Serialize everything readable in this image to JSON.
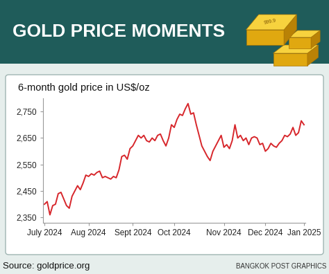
{
  "chart_data": {
    "type": "line",
    "title": "GOLD PRICE MOMENTS",
    "subtitle": "6-month gold price in US$/oz",
    "source": "Source: goldprice.org",
    "credit": "BANGKOK POST GRAPHICS",
    "annotations": [
      "999.9"
    ],
    "categories": [
      "July 2024",
      null,
      null,
      null,
      null,
      null,
      null,
      null,
      null,
      null,
      null,
      null,
      null,
      null,
      null,
      null,
      "Aug 2024",
      null,
      null,
      null,
      null,
      null,
      null,
      null,
      null,
      null,
      null,
      null,
      null,
      null,
      null,
      null,
      "Sept 2024",
      null,
      null,
      null,
      null,
      null,
      null,
      null,
      null,
      null,
      null,
      null,
      null,
      null,
      null,
      "Oct 2024",
      null,
      null,
      null,
      null,
      null,
      null,
      null,
      null,
      null,
      null,
      null,
      null,
      null,
      null,
      null,
      null,
      null,
      "Nov 2024",
      null,
      null,
      null,
      null,
      null,
      null,
      null,
      null,
      null,
      null,
      null,
      null,
      null,
      null,
      "Dec 2024",
      null,
      null,
      null,
      null,
      null,
      null,
      null,
      null,
      null,
      null,
      null,
      null,
      null,
      "Jan 2025"
    ],
    "values": [
      2400,
      2410,
      2360,
      2395,
      2400,
      2440,
      2445,
      2420,
      2395,
      2385,
      2430,
      2450,
      2470,
      2455,
      2480,
      2510,
      2505,
      2515,
      2510,
      2520,
      2525,
      2500,
      2505,
      2500,
      2495,
      2505,
      2500,
      2530,
      2580,
      2585,
      2570,
      2610,
      2620,
      2640,
      2660,
      2650,
      2660,
      2640,
      2635,
      2650,
      2640,
      2660,
      2665,
      2640,
      2620,
      2650,
      2700,
      2690,
      2720,
      2740,
      2735,
      2760,
      2780,
      2740,
      2745,
      2700,
      2660,
      2620,
      2600,
      2580,
      2565,
      2600,
      2620,
      2640,
      2660,
      2615,
      2625,
      2610,
      2640,
      2700,
      2650,
      2660,
      2640,
      2650,
      2625,
      2650,
      2655,
      2650,
      2625,
      2630,
      2600,
      2610,
      2630,
      2620,
      2615,
      2630,
      2640,
      2660,
      2655,
      2665,
      2690,
      2660,
      2670,
      2715,
      2700
    ],
    "color": "#d7262b",
    "line_style": "solid",
    "ylim": [
      2330,
      2800
    ],
    "yticks": [
      {
        "value": 2350,
        "label": "2,350"
      },
      {
        "value": 2450,
        "label": "2,450"
      },
      {
        "value": 2550,
        "label": "2,550"
      },
      {
        "value": 2650,
        "label": "2,650"
      },
      {
        "value": 2750,
        "label": "2,750"
      }
    ],
    "grid": false
  }
}
